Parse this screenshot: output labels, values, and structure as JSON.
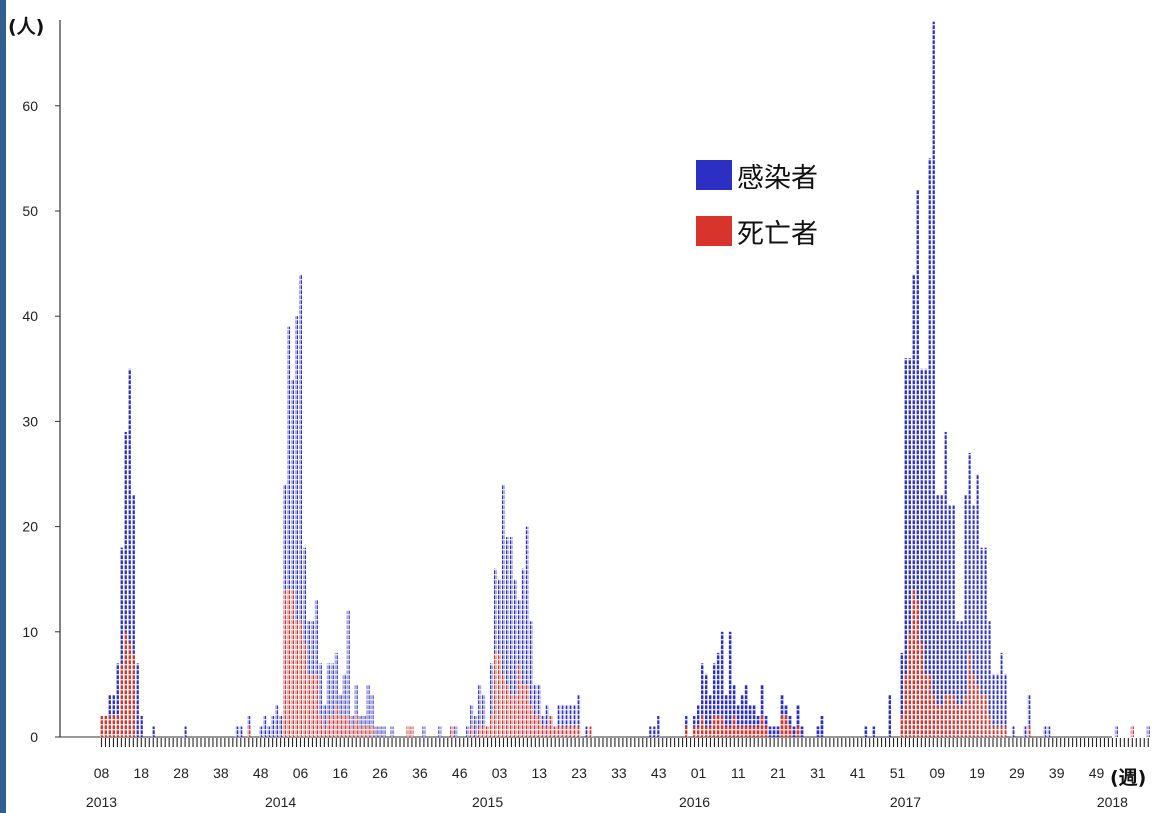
{
  "chart_data": {
    "type": "bar",
    "y_unit_label": "(人)",
    "x_unit_label": "(週)",
    "ylim": [
      0,
      68
    ],
    "y_ticks": [
      0,
      10,
      20,
      30,
      40,
      50,
      60
    ],
    "x_tick_labels": [
      "08",
      "18",
      "28",
      "38",
      "48",
      "06",
      "16",
      "26",
      "36",
      "46",
      "03",
      "13",
      "23",
      "33",
      "43",
      "01",
      "11",
      "21",
      "31",
      "41",
      "51",
      "09",
      "19",
      "29",
      "39",
      "49"
    ],
    "year_labels": [
      "2013",
      "2014",
      "2015",
      "2016",
      "2017",
      "2018"
    ],
    "grid": false,
    "legend_position": "top-right",
    "series": [
      {
        "name": "感染者",
        "color": "#2b2fc4",
        "values": [
          2,
          2,
          4,
          4,
          7,
          18,
          29,
          35,
          23,
          7,
          2,
          0,
          0,
          1,
          0,
          0,
          0,
          0,
          0,
          0,
          0,
          1,
          0,
          0,
          0,
          0,
          0,
          0,
          0,
          0,
          0,
          0,
          0,
          0,
          1,
          1,
          0,
          2,
          0,
          0,
          1,
          2,
          1,
          2,
          3,
          2,
          24,
          39,
          34,
          40,
          44,
          18,
          11,
          11,
          13,
          7,
          3,
          7,
          7,
          8,
          4,
          6,
          12,
          2,
          5,
          2,
          2,
          5,
          4,
          1,
          1,
          1,
          0,
          1,
          0,
          0,
          0,
          0,
          1,
          0,
          0,
          1,
          0,
          0,
          0,
          1,
          0,
          0,
          1,
          1,
          0,
          0,
          1,
          3,
          2,
          5,
          4,
          1,
          7,
          16,
          15,
          24,
          19,
          19,
          15,
          13,
          16,
          20,
          11,
          5,
          5,
          2,
          3,
          2,
          1,
          3,
          3,
          3,
          3,
          3,
          4,
          0,
          1,
          0,
          0,
          0,
          0,
          0,
          0,
          0,
          0,
          0,
          0,
          0,
          0,
          0,
          0,
          0,
          1,
          1,
          2,
          0,
          0,
          0,
          0,
          0,
          0,
          2,
          0,
          2,
          3,
          7,
          6,
          4,
          7,
          8,
          10,
          4,
          10,
          5,
          3,
          4,
          5,
          3,
          3,
          2,
          5,
          2,
          1,
          1,
          1,
          4,
          3,
          2,
          1,
          3,
          1,
          0,
          0,
          0,
          1,
          2,
          0,
          0,
          0,
          0,
          0,
          0,
          0,
          0,
          0,
          0,
          1,
          0,
          1,
          0,
          0,
          0,
          4,
          0,
          0,
          8,
          36,
          36,
          44,
          52,
          35,
          35,
          55,
          68,
          23,
          23,
          29,
          22,
          22,
          11,
          11,
          23,
          27,
          22,
          25,
          18,
          18,
          11,
          6,
          6,
          8,
          6,
          0,
          1,
          0,
          0,
          1,
          4,
          0,
          0,
          0,
          1,
          1,
          0,
          0,
          0,
          0,
          0,
          0,
          0,
          0,
          0,
          0,
          0,
          0,
          0,
          0,
          0,
          0,
          1,
          0,
          0,
          0,
          1,
          0,
          0,
          0,
          1
        ]
      },
      {
        "name": "死亡者",
        "color": "#d9342b",
        "values": [
          2,
          2,
          2,
          2,
          2,
          7,
          10,
          9,
          8,
          0,
          0,
          0,
          0,
          0,
          0,
          0,
          0,
          0,
          0,
          0,
          0,
          0,
          0,
          0,
          0,
          0,
          0,
          0,
          0,
          0,
          0,
          0,
          0,
          0,
          0,
          0,
          0,
          1,
          0,
          0,
          0,
          0,
          0,
          0,
          0,
          0,
          14,
          14,
          14,
          11,
          11,
          9,
          6,
          6,
          6,
          2,
          1,
          2,
          2,
          3,
          2,
          2,
          2,
          1,
          2,
          1,
          1,
          1,
          1,
          0,
          0,
          0,
          0,
          0,
          0,
          0,
          0,
          1,
          1,
          0,
          0,
          0,
          0,
          0,
          0,
          0,
          0,
          0,
          1,
          0,
          0,
          0,
          0,
          1,
          0,
          1,
          1,
          1,
          2,
          8,
          8,
          6,
          5,
          4,
          4,
          7,
          5,
          5,
          3,
          2,
          2,
          1,
          1,
          2,
          1,
          1,
          1,
          1,
          1,
          1,
          1,
          0,
          0,
          1,
          0,
          0,
          0,
          0,
          0,
          0,
          0,
          0,
          0,
          0,
          0,
          0,
          0,
          0,
          0,
          0,
          0,
          0,
          0,
          0,
          0,
          0,
          0,
          1,
          0,
          1,
          1,
          2,
          1,
          1,
          2,
          2,
          2,
          1,
          1,
          2,
          1,
          1,
          1,
          1,
          1,
          1,
          2,
          1,
          0,
          0,
          0,
          2,
          2,
          1,
          0,
          1,
          0,
          0,
          0,
          0,
          0,
          0,
          0,
          0,
          0,
          0,
          0,
          0,
          0,
          0,
          0,
          0,
          0,
          0,
          0,
          0,
          0,
          0,
          0,
          0,
          0,
          2,
          6,
          10,
          14,
          13,
          9,
          6,
          6,
          4,
          3,
          3,
          4,
          4,
          4,
          3,
          3,
          4,
          8,
          6,
          5,
          4,
          4,
          2,
          1,
          1,
          1,
          1,
          0,
          0,
          0,
          0,
          0,
          1,
          0,
          0,
          0,
          0,
          0,
          0,
          0,
          0,
          0,
          0,
          0,
          0,
          0,
          0,
          0,
          0,
          0,
          0,
          0,
          0,
          0,
          0,
          0,
          0,
          0,
          1,
          0,
          0,
          0,
          0
        ]
      }
    ]
  }
}
